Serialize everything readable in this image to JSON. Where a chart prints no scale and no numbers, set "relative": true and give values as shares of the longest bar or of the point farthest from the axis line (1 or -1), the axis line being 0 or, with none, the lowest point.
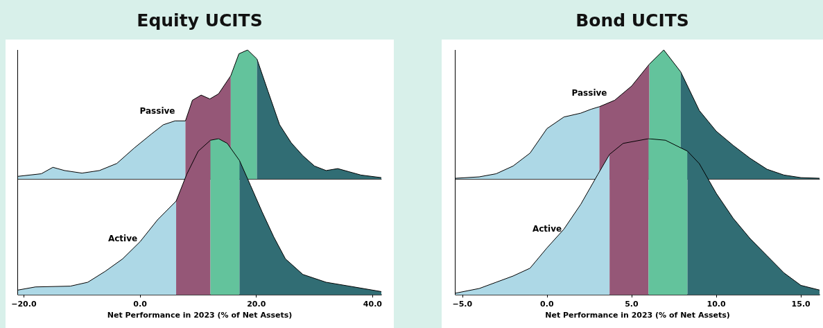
{
  "chart_data": [
    {
      "type": "area",
      "title": "Equity UCITS",
      "relative": true,
      "xlim": [
        -21,
        41.5
      ],
      "tick_labels": false,
      "grid": false,
      "annotations": [
        "Passive"
      ],
      "series": [
        {
          "color": "#add8e6",
          "x": [
            -21,
            -17,
            -15,
            -13,
            -10,
            -7,
            -4,
            -1,
            2,
            4,
            6,
            7.8
          ],
          "values": [
            0.02,
            0.04,
            0.09,
            0.065,
            0.045,
            0.065,
            0.12,
            0.24,
            0.35,
            0.42,
            0.45,
            0.45
          ]
        },
        {
          "color": "#955777",
          "x": [
            7.8,
            9,
            10.5,
            12,
            13.5,
            15.6
          ],
          "values": [
            0.45,
            0.61,
            0.65,
            0.62,
            0.66,
            0.8
          ]
        },
        {
          "color": "#63c39c",
          "x": [
            15.6,
            17,
            18.5,
            20.1
          ],
          "values": [
            0.8,
            0.97,
            1,
            0.93
          ]
        },
        {
          "color": "#316d74",
          "x": [
            20.1,
            22,
            24,
            26,
            28,
            30,
            32,
            34,
            36,
            38,
            41.5
          ],
          "values": [
            0.93,
            0.68,
            0.42,
            0.28,
            0.18,
            0.1,
            0.065,
            0.08,
            0.055,
            0.03,
            0.01
          ]
        }
      ]
    },
    {
      "type": "area",
      "xlabel": "Net Performance in 2023 (% of Net Assets)",
      "relative": true,
      "xlim": [
        -21,
        41.5
      ],
      "xticks": [
        {
          "value": -20,
          "label": "−20.0"
        },
        {
          "value": 0,
          "label": "0.0"
        },
        {
          "value": 20,
          "label": "20.0"
        },
        {
          "value": 40,
          "label": "40.0"
        }
      ],
      "grid": false,
      "annotations": [
        "Active"
      ],
      "series": [
        {
          "color": "#add8e6",
          "x": [
            -21,
            -18,
            -12,
            -9,
            -6,
            -3,
            0,
            3,
            6.2
          ],
          "values": [
            0.03,
            0.05,
            0.055,
            0.08,
            0.15,
            0.23,
            0.34,
            0.48,
            0.6
          ]
        },
        {
          "color": "#955777",
          "x": [
            6.2,
            8,
            10,
            12.1
          ],
          "values": [
            0.6,
            0.77,
            0.92,
            0.99
          ]
        },
        {
          "color": "#63c39c",
          "x": [
            12.1,
            13.5,
            15,
            17.1
          ],
          "values": [
            0.99,
            1,
            0.97,
            0.86
          ]
        },
        {
          "color": "#316d74",
          "x": [
            17.1,
            19,
            21,
            23,
            25,
            28,
            32,
            36,
            41.5
          ],
          "values": [
            0.86,
            0.7,
            0.53,
            0.37,
            0.23,
            0.13,
            0.08,
            0.055,
            0.02
          ]
        }
      ]
    },
    {
      "type": "area",
      "title": "Bond UCITS",
      "relative": true,
      "xlim": [
        -5.4,
        16.1
      ],
      "tick_labels": false,
      "grid": false,
      "annotations": [
        "Passive"
      ],
      "series": [
        {
          "color": "#add8e6",
          "x": [
            -5.4,
            -4,
            -3,
            -2,
            -1,
            0,
            1,
            2,
            2.6,
            3.1
          ],
          "values": [
            0.005,
            0.016,
            0.04,
            0.1,
            0.2,
            0.39,
            0.48,
            0.51,
            0.54,
            0.56
          ]
        },
        {
          "color": "#955777",
          "x": [
            3.1,
            4,
            5,
            6.05
          ],
          "values": [
            0.56,
            0.61,
            0.72,
            0.89
          ]
        },
        {
          "color": "#63c39c",
          "x": [
            6.05,
            6.9,
            7.9
          ],
          "values": [
            0.89,
            1,
            0.83
          ]
        },
        {
          "color": "#316d74",
          "x": [
            7.9,
            9,
            10,
            11,
            12,
            13,
            14,
            15,
            16.1
          ],
          "values": [
            0.83,
            0.53,
            0.37,
            0.26,
            0.16,
            0.075,
            0.03,
            0.01,
            0.005
          ]
        }
      ]
    },
    {
      "type": "area",
      "xlabel": "Net Performance in 2023 (% of Net Assets)",
      "relative": true,
      "xlim": [
        -5.4,
        16.1
      ],
      "xticks": [
        {
          "value": -5,
          "label": "−5.0"
        },
        {
          "value": 0,
          "label": "0.0"
        },
        {
          "value": 5,
          "label": "5.0"
        },
        {
          "value": 10,
          "label": "10.0"
        },
        {
          "value": 15,
          "label": "15.0"
        }
      ],
      "grid": false,
      "annotations": [
        "Active"
      ],
      "series": [
        {
          "color": "#add8e6",
          "x": [
            -5.4,
            -4,
            -3,
            -2,
            -1,
            0,
            1,
            2,
            3,
            3.7
          ],
          "values": [
            0.01,
            0.04,
            0.08,
            0.12,
            0.17,
            0.3,
            0.42,
            0.58,
            0.77,
            0.9
          ]
        },
        {
          "color": "#955777",
          "x": [
            3.7,
            4.5,
            6
          ],
          "values": [
            0.9,
            0.97,
            1
          ]
        },
        {
          "color": "#63c39c",
          "x": [
            6,
            7,
            8.3
          ],
          "values": [
            1,
            0.99,
            0.92
          ]
        },
        {
          "color": "#316d74",
          "x": [
            8.3,
            9,
            10,
            11,
            12,
            13,
            14,
            15,
            16.1
          ],
          "values": [
            0.92,
            0.84,
            0.65,
            0.49,
            0.36,
            0.25,
            0.14,
            0.06,
            0.03
          ]
        }
      ]
    }
  ]
}
